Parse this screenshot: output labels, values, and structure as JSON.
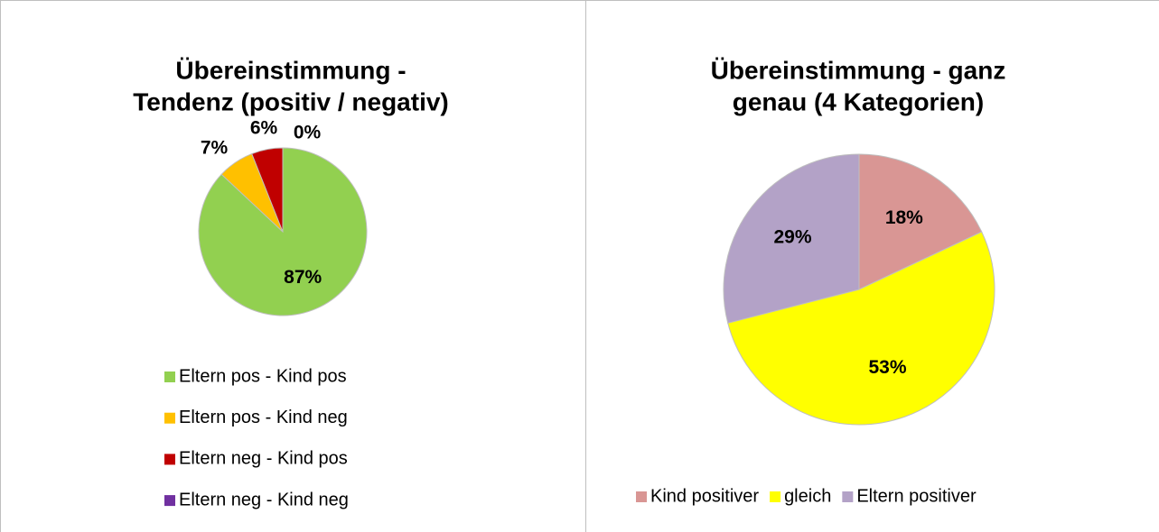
{
  "chart_data": [
    {
      "type": "pie",
      "title": [
        "Übereinstimmung -",
        "Tendenz (positiv / negativ)"
      ],
      "categories": [
        "Eltern pos - Kind pos",
        "Eltern pos - Kind neg",
        "Eltern neg - Kind pos",
        "Eltern neg - Kind neg"
      ],
      "values": [
        87,
        7,
        6,
        0
      ],
      "value_labels": [
        "87%",
        "7%",
        "6%",
        "0%"
      ],
      "colors": [
        "#92d050",
        "#ffc000",
        "#c00000",
        "#7030a0"
      ],
      "legend": "bottom-vertical"
    },
    {
      "type": "pie",
      "title": [
        "Übereinstimmung - ganz",
        "genau (4 Kategorien)"
      ],
      "categories": [
        "Kind positiver",
        "gleich",
        "Eltern positiver"
      ],
      "values": [
        18,
        53,
        29
      ],
      "value_labels": [
        "18%",
        "53%",
        "29%"
      ],
      "colors": [
        "#d99694",
        "#ffff00",
        "#b3a2c7"
      ],
      "legend": "bottom-horizontal"
    }
  ]
}
